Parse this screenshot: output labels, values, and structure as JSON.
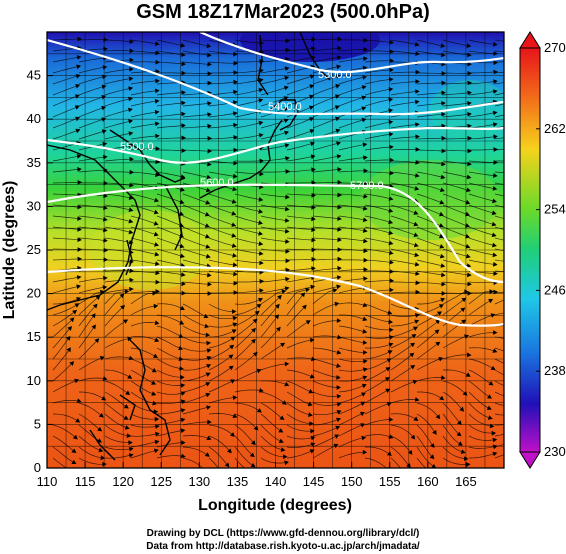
{
  "title": "GSM 18Z17Mar2023 (500.0hPa)",
  "axes": {
    "xlabel": "Longitude (degrees)",
    "ylabel": "Latitude  (degrees)",
    "x_ticks": [
      110,
      115,
      120,
      125,
      130,
      135,
      140,
      145,
      150,
      155,
      160,
      165
    ],
    "y_ticks": [
      0,
      5,
      10,
      15,
      20,
      25,
      30,
      35,
      40,
      45
    ],
    "xlim": [
      110,
      170
    ],
    "ylim": [
      0,
      50
    ]
  },
  "colorbar": {
    "ticks": [
      230,
      238,
      246,
      254,
      262,
      270
    ],
    "range": [
      230,
      270
    ]
  },
  "contours": [
    {
      "label": "5300.0"
    },
    {
      "label": "5400.0"
    },
    {
      "label": "5500.0"
    },
    {
      "label": "5600.0"
    },
    {
      "label": "5700.0"
    }
  ],
  "credits": {
    "line1": "Drawing by DCL (https://www.gfd-dennou.org/library/dcl/)",
    "line2": "Data from http://database.rish.kyoto-u.ac.jp/arch/jmadata/"
  }
}
